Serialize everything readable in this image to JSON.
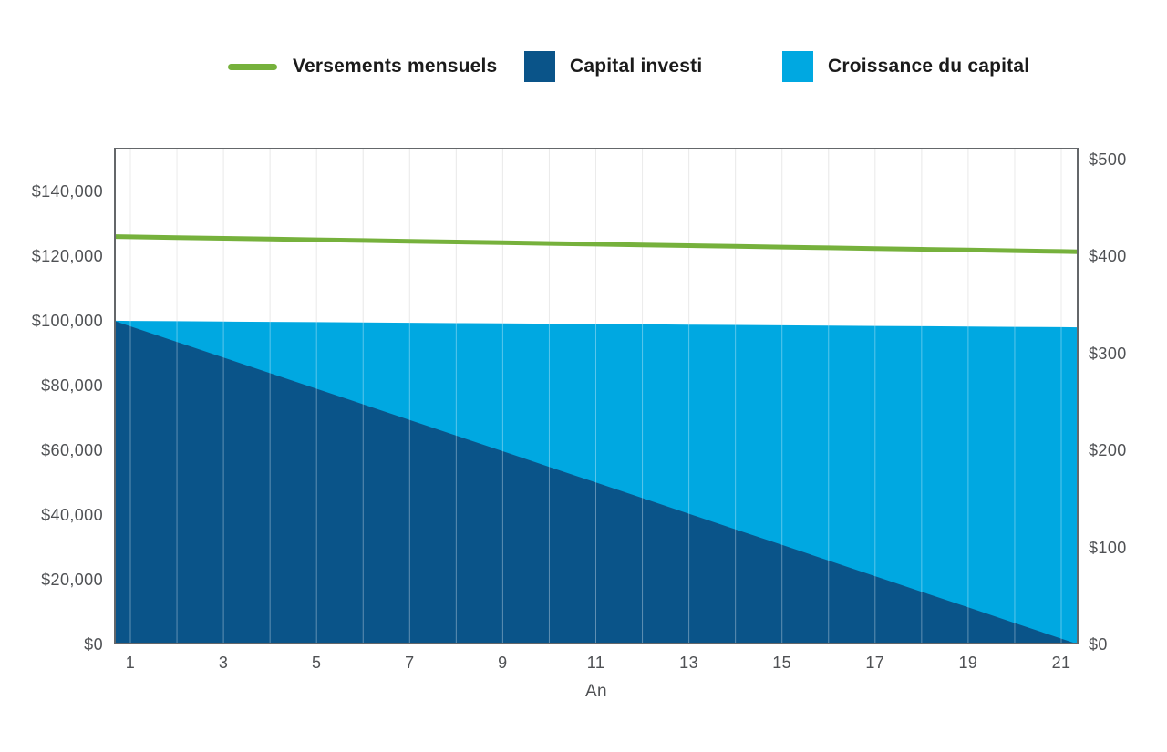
{
  "legend": {
    "items": [
      {
        "label": "Versements mensuels",
        "color": "#76b13c",
        "swatch": "line"
      },
      {
        "label": "Capital investi",
        "color": "#0a5489",
        "swatch": "square"
      },
      {
        "label": "Croissance du capital",
        "color": "#00a8e1",
        "swatch": "square"
      }
    ]
  },
  "chart_data": {
    "type": "area",
    "title": "",
    "xlabel": "An",
    "grid": "vertical",
    "legend_position": "top",
    "x": [
      1,
      2,
      3,
      4,
      5,
      6,
      7,
      8,
      9,
      10,
      11,
      12,
      13,
      14,
      15,
      16,
      17,
      18,
      19,
      20,
      21
    ],
    "x_ticks": [
      {
        "label": "1",
        "year": 1
      },
      {
        "label": "3",
        "year": 3
      },
      {
        "label": "5",
        "year": 5
      },
      {
        "label": "7",
        "year": 7
      },
      {
        "label": "9",
        "year": 9
      },
      {
        "label": "11",
        "year": 11
      },
      {
        "label": "13",
        "year": 13
      },
      {
        "label": "15",
        "year": 15
      },
      {
        "label": "17",
        "year": 17
      },
      {
        "label": "19",
        "year": 19
      },
      {
        "label": "21",
        "year": 21
      }
    ],
    "left_axis": {
      "range": [
        0,
        153500
      ],
      "ticks": [
        {
          "label": "$0",
          "value": 0
        },
        {
          "label": "$20,000",
          "value": 20000
        },
        {
          "label": "$40,000",
          "value": 40000
        },
        {
          "label": "$60,000",
          "value": 60000
        },
        {
          "label": "$80,000",
          "value": 80000
        },
        {
          "label": "$100,000",
          "value": 100000
        },
        {
          "label": "$120,000",
          "value": 120000
        },
        {
          "label": "$140,000",
          "value": 140000
        }
      ]
    },
    "right_axis": {
      "range": [
        0,
        512
      ],
      "ticks": [
        {
          "label": "$0",
          "value": 0
        },
        {
          "label": "$100",
          "value": 100
        },
        {
          "label": "$200",
          "value": 200
        },
        {
          "label": "$300",
          "value": 300
        },
        {
          "label": "$400",
          "value": 400
        },
        {
          "label": "$500",
          "value": 500
        }
      ]
    },
    "series": [
      {
        "name": "Versements mensuels",
        "type": "line",
        "axis": "right",
        "color": "#76b13c",
        "values": [
          420,
          419.25,
          418.5,
          417.75,
          417,
          416.25,
          415.5,
          414.75,
          414,
          413.25,
          412.5,
          411.75,
          411,
          410.25,
          409.5,
          408.75,
          408,
          407.25,
          406.5,
          405.75,
          405
        ]
      },
      {
        "name": "Capital investi",
        "type": "area",
        "axis": "left",
        "color": "#0a5489",
        "values": [
          98300,
          93475,
          88650,
          83825,
          79000,
          74175,
          69350,
          64525,
          59700,
          54875,
          50050,
          45225,
          40400,
          35575,
          30750,
          25925,
          21100,
          16275,
          11450,
          6625,
          1800
        ]
      },
      {
        "name": "Croissance du capital",
        "type": "area",
        "axis": "left",
        "stacked_on": "Capital investi",
        "color": "#00a8e1",
        "values": [
          1670,
          6395,
          11125,
          15855,
          20580,
          25310,
          30040,
          34765,
          39495,
          44225,
          48950,
          53680,
          58410,
          63135,
          67865,
          72595,
          77320,
          82050,
          86780,
          91510,
          96235
        ]
      }
    ],
    "plot_colors": {
      "border": "#64676a",
      "gridline": "#e0e0e0",
      "gridline_over_area": "rgba(255,255,255,0.35)",
      "background": "#ffffff"
    }
  }
}
